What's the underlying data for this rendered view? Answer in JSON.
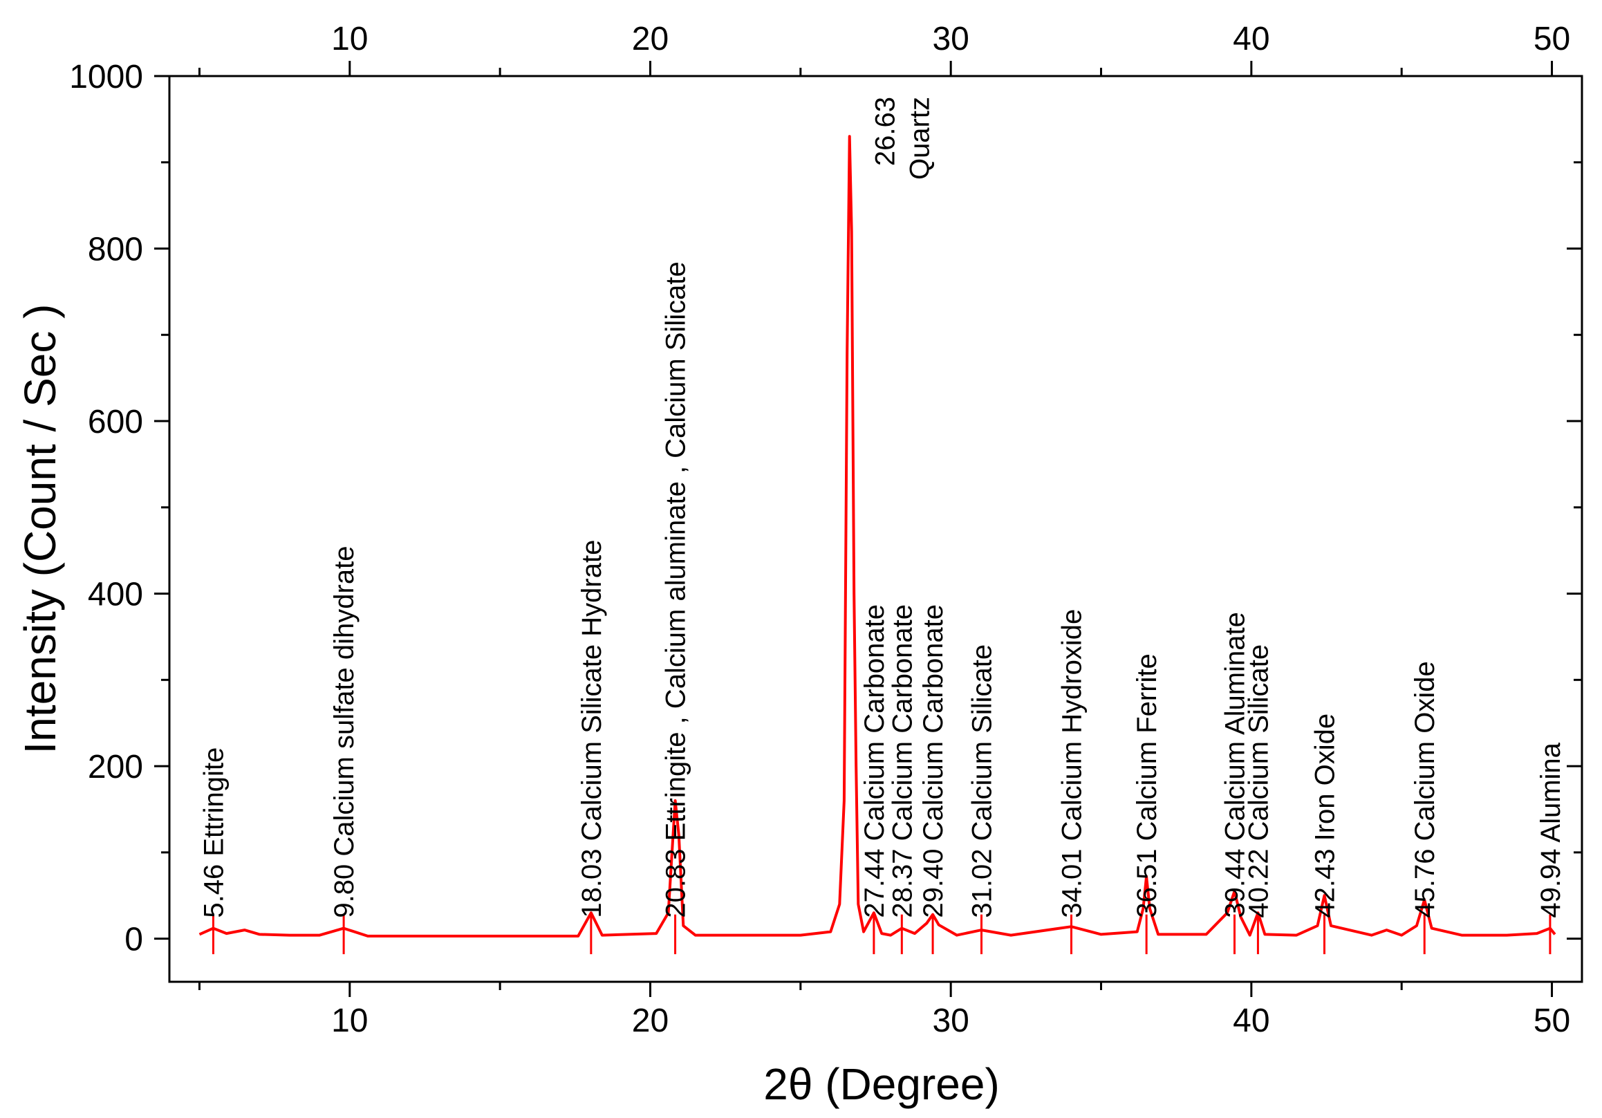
{
  "chart_data": {
    "type": "line",
    "title": "",
    "xlabel": "2θ (Degree)",
    "ylabel": "Intensity (Count / Sec )",
    "xlim": [
      4,
      51
    ],
    "ylim": [
      -50,
      1000
    ],
    "x_ticks": [
      10,
      20,
      30,
      40,
      50
    ],
    "y_ticks": [
      0,
      200,
      400,
      600,
      800,
      1000
    ],
    "top_axis_ticks": [
      10,
      20,
      30,
      40,
      50
    ],
    "grid": false,
    "line_color": "#ff0000",
    "series": [
      {
        "name": "",
        "x": [
          5.0,
          5.46,
          5.9,
          6.5,
          7.0,
          8.0,
          9.0,
          9.8,
          10.6,
          12.0,
          14.0,
          16.0,
          17.6,
          18.03,
          18.4,
          20.2,
          20.6,
          20.75,
          20.83,
          20.95,
          21.1,
          21.5,
          23.0,
          25.0,
          26.0,
          26.3,
          26.45,
          26.55,
          26.63,
          26.7,
          26.78,
          26.85,
          26.92,
          27.1,
          27.44,
          27.7,
          28.0,
          28.37,
          28.8,
          29.2,
          29.4,
          29.6,
          30.2,
          31.02,
          32.0,
          34.01,
          35.0,
          36.2,
          36.4,
          36.51,
          36.62,
          36.9,
          38.5,
          39.2,
          39.44,
          39.65,
          39.95,
          40.22,
          40.45,
          41.5,
          42.2,
          42.43,
          42.65,
          44.0,
          44.5,
          45.0,
          45.5,
          45.76,
          46.0,
          47.0,
          48.5,
          49.5,
          49.94,
          50.1
        ],
        "y": [
          5,
          12,
          6,
          10,
          5,
          4,
          4,
          12,
          3,
          3,
          3,
          3,
          3,
          30,
          4,
          6,
          30,
          115,
          160,
          120,
          15,
          4,
          4,
          4,
          8,
          40,
          160,
          680,
          930,
          820,
          400,
          200,
          40,
          8,
          30,
          6,
          4,
          12,
          6,
          18,
          28,
          16,
          4,
          10,
          4,
          14,
          5,
          8,
          35,
          72,
          35,
          5,
          5,
          30,
          55,
          25,
          4,
          30,
          5,
          4,
          15,
          50,
          15,
          4,
          10,
          4,
          15,
          45,
          12,
          4,
          4,
          6,
          12,
          5
        ]
      }
    ],
    "peak_labels": [
      {
        "x": 5.46,
        "text": "5.46 Ettringite"
      },
      {
        "x": 9.8,
        "text": "9.80  Calcium sulfate dihydrate"
      },
      {
        "x": 18.03,
        "text": "18.03    Calcium Silicate Hydrate"
      },
      {
        "x": 20.83,
        "text": "20.83    Ettringite , Calcium aluminate , Calcium Silicate"
      },
      {
        "x": 27.44,
        "text": "27.44  Calcium Carbonate"
      },
      {
        "x": 28.37,
        "text": "28.37  Calcium Carbonate"
      },
      {
        "x": 29.4,
        "text": "29.40  Calcium Carbonate"
      },
      {
        "x": 31.02,
        "text": "31.02    Calcium Silicate"
      },
      {
        "x": 34.01,
        "text": "34.01  Calcium Hydroxide"
      },
      {
        "x": 36.51,
        "text": "36.51 Calcium Ferrite"
      },
      {
        "x": 39.44,
        "text": "39.44    Calcium Aluminate"
      },
      {
        "x": 40.22,
        "text": "40.22  Calcium Silicate"
      },
      {
        "x": 42.43,
        "text": "42.43    Iron Oxide"
      },
      {
        "x": 45.76,
        "text": "45.76 Calcium Oxide"
      },
      {
        "x": 49.94,
        "text": "49.94     Alumina"
      }
    ],
    "quartz_label": {
      "x": 26.63,
      "line1": "26.63",
      "line2": "Quartz"
    }
  }
}
